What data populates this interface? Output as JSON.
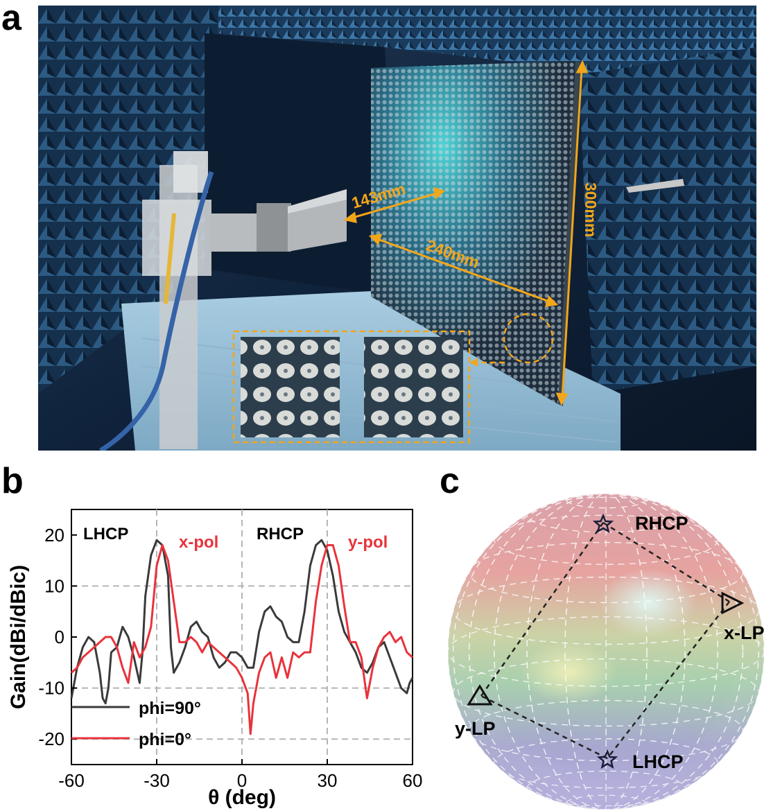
{
  "panels": {
    "a": "a",
    "b": "b",
    "c": "c"
  },
  "photo": {
    "dim_width": "240mm",
    "dim_height": "300mm",
    "dim_distance": "143mm",
    "colors": {
      "annotation": "#f2a61a",
      "chamber": "#1c3a5a",
      "foam": "#9fc3d9"
    }
  },
  "chart_data": {
    "type": "line",
    "xlabel": "θ (deg)",
    "ylabel": "Gain(dBi/dBic)",
    "xlim": [
      -60,
      60
    ],
    "ylim": [
      -25,
      25
    ],
    "xticks": [
      "-60",
      "-30",
      "0",
      "30",
      "60"
    ],
    "yticks": [
      "-20",
      "-10",
      "0",
      "10",
      "20"
    ],
    "grid": "dashed at -30, 0, 30 (x) and -20, -10, 10 (y)",
    "annotations": [
      {
        "text": "LHCP",
        "color": "#000000"
      },
      {
        "text": "x-pol",
        "color": "#e8333b"
      },
      {
        "text": "RHCP",
        "color": "#000000"
      },
      {
        "text": "y-pol",
        "color": "#e8333b"
      }
    ],
    "legend_position": "bottom-left",
    "series": [
      {
        "name": "phi=90°",
        "color": "#3a3a3a",
        "x": [
          -60,
          -58,
          -56,
          -54,
          -52,
          -50,
          -49,
          -48,
          -47,
          -46,
          -44,
          -42,
          -40,
          -38,
          -36,
          -35,
          -34,
          -32,
          -30,
          -28,
          -26,
          -25,
          -24,
          -22,
          -20,
          -18,
          -16,
          -14,
          -12,
          -10,
          -8,
          -6,
          -4,
          -2,
          0,
          2,
          4,
          6,
          8,
          10,
          12,
          14,
          16,
          18,
          20,
          22,
          24,
          26,
          28,
          30,
          32,
          34,
          36,
          38,
          40,
          42,
          44,
          46,
          48,
          50,
          52,
          54,
          56,
          58,
          59,
          60
        ],
        "y": [
          -12,
          -6,
          -2,
          0,
          -1,
          -7,
          -12,
          -13,
          -10,
          -3,
          -2,
          2,
          0,
          -4,
          -9,
          -3,
          8,
          16,
          19,
          18,
          12,
          -2,
          -7,
          -5,
          -2,
          2,
          3,
          1,
          0,
          -4,
          -6,
          -5,
          -3,
          -3,
          -4,
          -6,
          -6,
          1,
          5,
          6,
          4,
          3,
          0,
          -1,
          -1,
          5,
          14,
          18,
          19,
          17,
          12,
          5,
          1,
          -1,
          -3,
          -6,
          -7,
          -5,
          -2,
          -1,
          -4,
          -7,
          -10,
          -11,
          -9,
          -8
        ]
      },
      {
        "name": "phi=0°",
        "color": "#e8333b",
        "x": [
          -60,
          -58,
          -56,
          -54,
          -52,
          -50,
          -48,
          -46,
          -44,
          -42,
          -40,
          -38,
          -36,
          -34,
          -32,
          -30,
          -28,
          -26,
          -24,
          -22,
          -20,
          -18,
          -16,
          -14,
          -12,
          -10,
          -8,
          -6,
          -4,
          -2,
          0,
          2,
          3,
          4,
          6,
          8,
          10,
          12,
          14,
          16,
          18,
          20,
          22,
          24,
          26,
          28,
          30,
          32,
          34,
          36,
          38,
          40,
          42,
          44,
          46,
          48,
          50,
          52,
          54,
          56,
          58,
          60
        ],
        "y": [
          -7,
          -6,
          -4,
          -3,
          -2,
          -1,
          0,
          0,
          -2,
          -6,
          -9,
          -1,
          -4,
          -2,
          2,
          14,
          18,
          15,
          7,
          -1,
          -1,
          0,
          -1,
          -3,
          -1,
          -2,
          -3,
          -4,
          -5,
          -6,
          -8,
          -11,
          -19,
          -13,
          -7,
          -4,
          -3,
          -8,
          -4,
          -8,
          -3,
          -4,
          -3,
          -3,
          7,
          14,
          18,
          18,
          14,
          6,
          -1,
          -1,
          -4,
          -12,
          -6,
          -2,
          0,
          1,
          -1,
          0,
          -3,
          -4
        ]
      }
    ]
  },
  "sphere": {
    "labels": {
      "rhcp": "RHCP",
      "lhcp": "LHCP",
      "xlp": "x-LP",
      "ylp": "y-LP"
    }
  }
}
